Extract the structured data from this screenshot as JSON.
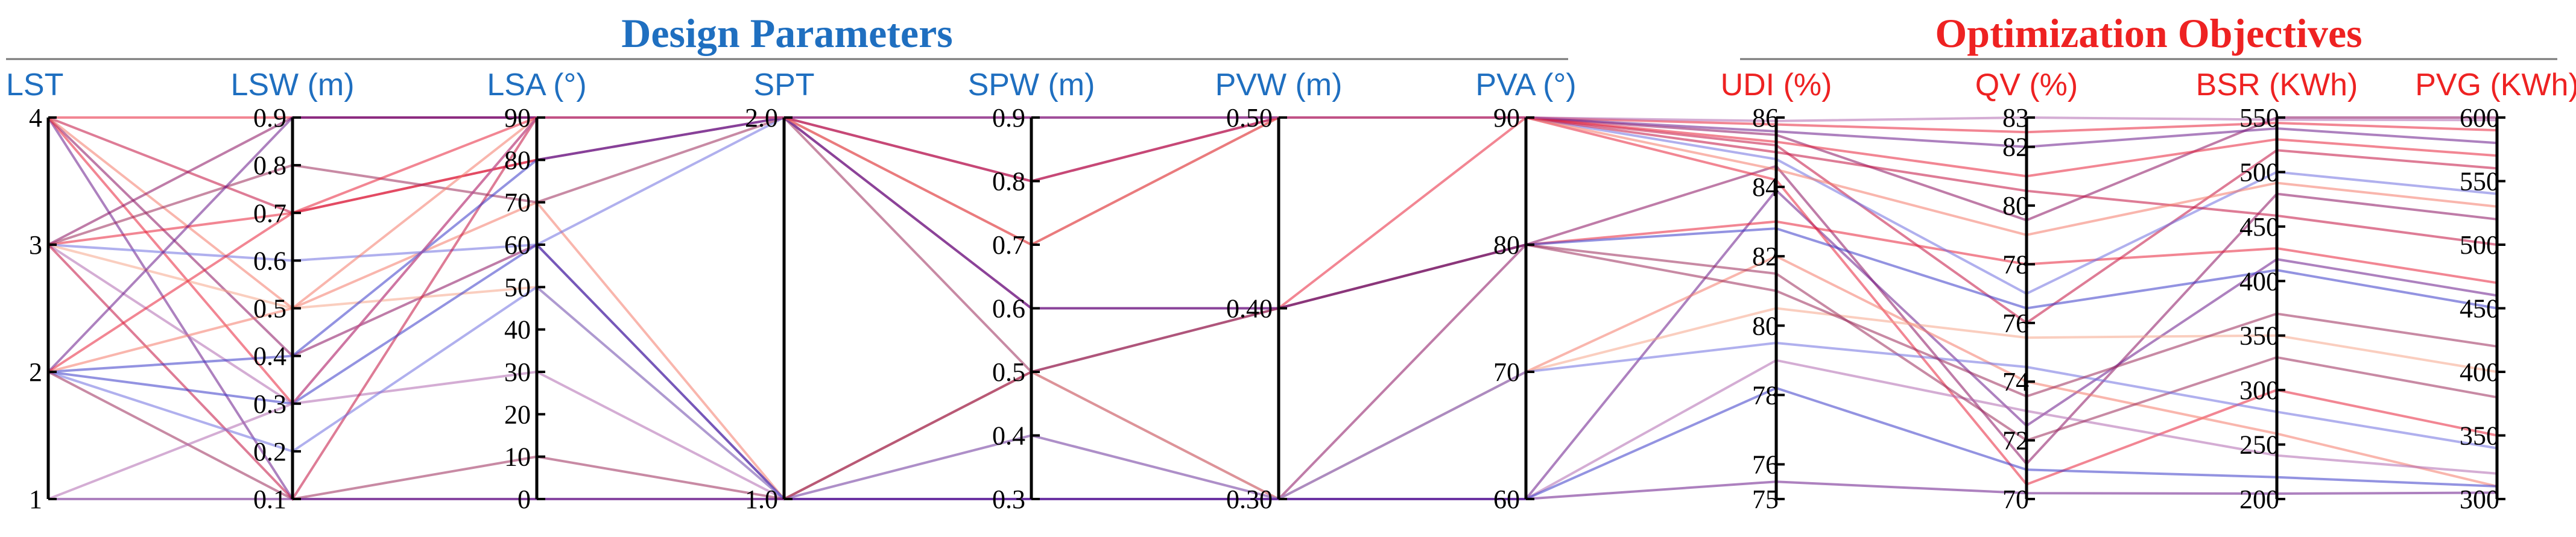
{
  "chart_data": {
    "type": "parallel_coordinates",
    "sections": [
      {
        "title": "Design Parameters",
        "color": "#1f6fc0",
        "axes": [
          0,
          6
        ]
      },
      {
        "title": "Optimization Objectives",
        "color": "#ee2222",
        "axes": [
          7,
          10
        ]
      }
    ],
    "axes": [
      {
        "label": "LST",
        "range": [
          1,
          4
        ],
        "ticks": [
          "1",
          "2",
          "3",
          "4"
        ],
        "tick_values": [
          1,
          2,
          3,
          4
        ]
      },
      {
        "label": "LSW (m)",
        "range": [
          0.1,
          0.9
        ],
        "ticks": [
          "0.1",
          "0.2",
          "0.3",
          "0.4",
          "0.5",
          "0.6",
          "0.7",
          "0.8",
          "0.9"
        ],
        "tick_values": [
          0.1,
          0.2,
          0.3,
          0.4,
          0.5,
          0.6,
          0.7,
          0.8,
          0.9
        ]
      },
      {
        "label": "LSA (°)",
        "range": [
          0,
          90
        ],
        "ticks": [
          "0",
          "10",
          "20",
          "30",
          "40",
          "50",
          "60",
          "70",
          "80",
          "90"
        ],
        "tick_values": [
          0,
          10,
          20,
          30,
          40,
          50,
          60,
          70,
          80,
          90
        ]
      },
      {
        "label": "SPT",
        "range": [
          1.0,
          2.0
        ],
        "ticks": [
          "1.0",
          "2.0"
        ],
        "tick_values": [
          1.0,
          2.0
        ]
      },
      {
        "label": "SPW (m)",
        "range": [
          0.3,
          0.9
        ],
        "ticks": [
          "0.3",
          "0.4",
          "0.5",
          "0.6",
          "0.7",
          "0.8",
          "0.9"
        ],
        "tick_values": [
          0.3,
          0.4,
          0.5,
          0.6,
          0.7,
          0.8,
          0.9
        ]
      },
      {
        "label": "PVW (m)",
        "range": [
          0.3,
          0.5
        ],
        "ticks": [
          "0.30",
          "0.40",
          "0.50"
        ],
        "tick_values": [
          0.3,
          0.4,
          0.5
        ]
      },
      {
        "label": "PVA (°)",
        "range": [
          60,
          90
        ],
        "ticks": [
          "60",
          "70",
          "80",
          "90"
        ],
        "tick_values": [
          60,
          70,
          80,
          90
        ]
      },
      {
        "label": "UDI (%)",
        "range": [
          75,
          86
        ],
        "ticks": [
          "75",
          "76",
          "78",
          "80",
          "82",
          "84",
          "86"
        ],
        "tick_values": [
          75,
          76,
          78,
          80,
          82,
          84,
          86
        ]
      },
      {
        "label": "QV (%)",
        "range": [
          70,
          83
        ],
        "ticks": [
          "70",
          "72",
          "74",
          "76",
          "78",
          "80",
          "82",
          "83"
        ],
        "tick_values": [
          70,
          72,
          74,
          76,
          78,
          80,
          82,
          83
        ]
      },
      {
        "label": "BSR (KWh)",
        "range": [
          200,
          550
        ],
        "ticks": [
          "200",
          "250",
          "300",
          "350",
          "400",
          "450",
          "500",
          "550"
        ],
        "tick_values": [
          200,
          250,
          300,
          350,
          400,
          450,
          500,
          550
        ]
      },
      {
        "label": "PVG (KWh)",
        "range": [
          300,
          600
        ],
        "ticks": [
          "300",
          "350",
          "400",
          "450",
          "500",
          "550",
          "600"
        ],
        "tick_values": [
          300,
          350,
          400,
          450,
          500,
          550,
          600
        ]
      }
    ],
    "line_colors": [
      "#e8223a",
      "#c21040",
      "#8a1060",
      "#6a1a8a",
      "#3a3ac8",
      "#6f6fe0",
      "#f47a6a",
      "#f5a58a",
      "#b06ab0",
      "#9a2a5a"
    ],
    "series": [
      {
        "values": [
          4,
          0.9,
          90,
          2.0,
          0.9,
          0.5,
          90,
          85.8,
          82.5,
          545,
          590
        ],
        "color": 0
      },
      {
        "values": [
          4,
          0.7,
          80,
          2.0,
          0.8,
          0.5,
          90,
          85.2,
          76.0,
          520,
          560
        ],
        "color": 1
      },
      {
        "values": [
          4,
          0.4,
          60,
          1.0,
          0.5,
          0.3,
          80,
          84.6,
          71.2,
          480,
          520
        ],
        "color": 2
      },
      {
        "values": [
          4,
          0.1,
          0,
          1.0,
          0.3,
          0.3,
          60,
          83.9,
          72.5,
          420,
          460
        ],
        "color": 3
      },
      {
        "values": [
          4,
          0.3,
          90,
          2.0,
          0.6,
          0.4,
          90,
          84.2,
          70.5,
          300,
          350
        ],
        "color": 0
      },
      {
        "values": [
          4,
          0.5,
          70,
          1.0,
          0.4,
          0.3,
          70,
          82.0,
          74.0,
          260,
          310
        ],
        "color": 6
      },
      {
        "values": [
          3,
          0.9,
          90,
          2.0,
          0.9,
          0.5,
          90,
          85.5,
          79.5,
          550,
          600
        ],
        "color": 2
      },
      {
        "values": [
          3,
          0.7,
          80,
          2.0,
          0.6,
          0.4,
          80,
          83.0,
          78.0,
          430,
          470
        ],
        "color": 0
      },
      {
        "values": [
          3,
          0.6,
          60,
          2.0,
          0.8,
          0.5,
          90,
          84.8,
          77.0,
          500,
          540
        ],
        "color": 5
      },
      {
        "values": [
          3,
          0.5,
          50,
          1.0,
          0.5,
          0.3,
          70,
          80.5,
          75.5,
          350,
          400
        ],
        "color": 7
      },
      {
        "values": [
          3,
          0.3,
          30,
          1.0,
          0.3,
          0.3,
          60,
          79.0,
          73.0,
          240,
          320
        ],
        "color": 8
      },
      {
        "values": [
          3,
          0.1,
          90,
          2.0,
          0.7,
          0.5,
          90,
          85.0,
          80.5,
          460,
          500
        ],
        "color": 1
      },
      {
        "values": [
          3,
          0.8,
          70,
          2.0,
          0.5,
          0.4,
          80,
          81.5,
          72.0,
          330,
          380
        ],
        "color": 9
      },
      {
        "values": [
          2,
          0.9,
          90,
          2.0,
          0.9,
          0.5,
          90,
          85.6,
          82.0,
          540,
          580
        ],
        "color": 3
      },
      {
        "values": [
          2,
          0.4,
          80,
          2.0,
          0.6,
          0.4,
          80,
          82.8,
          76.5,
          410,
          450
        ],
        "color": 4
      },
      {
        "values": [
          2,
          0.3,
          60,
          1.0,
          0.3,
          0.3,
          60,
          78.2,
          71.0,
          220,
          310
        ],
        "color": 4
      },
      {
        "values": [
          2,
          0.2,
          50,
          1.0,
          0.4,
          0.3,
          70,
          79.5,
          74.5,
          280,
          340
        ],
        "color": 5
      },
      {
        "values": [
          2,
          0.1,
          10,
          1.0,
          0.5,
          0.4,
          80,
          81.0,
          73.5,
          370,
          420
        ],
        "color": 9
      },
      {
        "values": [
          2,
          0.5,
          90,
          2.0,
          0.7,
          0.5,
          90,
          84.5,
          79.0,
          490,
          530
        ],
        "color": 6
      },
      {
        "values": [
          2,
          0.7,
          90,
          2.0,
          0.8,
          0.5,
          90,
          85.3,
          81.0,
          530,
          570
        ],
        "color": 0
      },
      {
        "values": [
          1,
          0.1,
          0,
          1.0,
          0.3,
          0.3,
          60,
          75.5,
          70.2,
          205,
          305
        ],
        "color": 3
      },
      {
        "values": [
          1,
          0.3,
          90,
          2.0,
          0.9,
          0.5,
          90,
          85.9,
          83.0,
          548,
          598
        ],
        "color": 8
      }
    ],
    "title": "",
    "xlabel": "",
    "ylabel": "",
    "grid": false,
    "legend": "none"
  }
}
